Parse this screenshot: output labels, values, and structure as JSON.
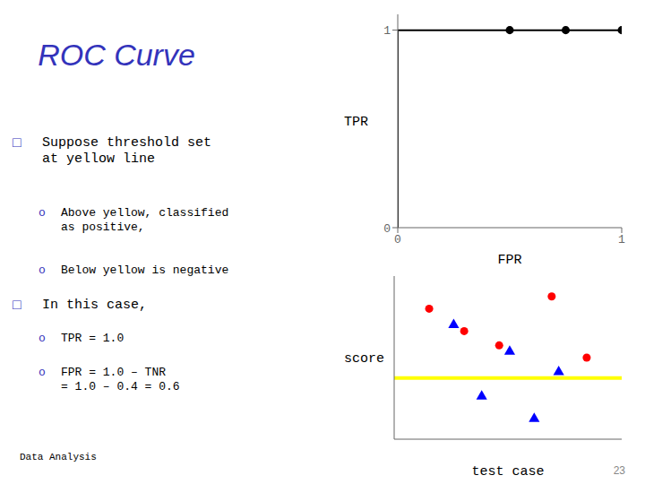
{
  "title": "ROC Curve",
  "color": "#3333bb",
  "annotations": [
    [
      "□",
      "Suppose threshold set\nat yellow line"
    ],
    [
      "o",
      "Above yellow, classified\nas positive,"
    ],
    [
      "o",
      "Below yellow is negative"
    ],
    [
      "□",
      "In this case,"
    ],
    [
      "o",
      "TPR = 1.0"
    ],
    [
      "o",
      "FPR = 1.0 – TNR\n= 1.0 – 0.4 = 0.6"
    ]
  ],
  "footer": "Data Analysis",
  "page_number": 23,
  "chart_data": [
    {
      "type": "line",
      "xlabel": "FPR",
      "ylabel": "TPR",
      "xlim": [
        0,
        1
      ],
      "ylim": [
        0,
        1.08
      ],
      "xticks": [
        0,
        1
      ],
      "yticks": [
        0,
        1
      ],
      "series": [
        {
          "type": "line",
          "color": "#000000",
          "x": [
            0.0,
            0.0,
            0.5,
            0.75,
            1.0
          ],
          "values": [
            0.0,
            1.0,
            1.0,
            1.0,
            1.0
          ]
        },
        {
          "type": "scatter",
          "color": "#000000",
          "marker": "circle",
          "x": [
            0.5,
            0.75,
            1.0
          ],
          "values": [
            1.0,
            1.0,
            1.0
          ]
        }
      ]
    },
    {
      "type": "scatter",
      "xlabel": "test case",
      "ylabel": "score",
      "xlim": [
        1.5,
        8.0
      ],
      "ylim": [
        0.12,
        0.92
      ],
      "tick_labels": false,
      "series": [
        {
          "type": "hline",
          "color": "yellow",
          "values": [
            0.42
          ]
        },
        {
          "type": "scatter",
          "color": "red",
          "marker": "circle",
          "x": [
            2.5,
            3.5,
            4.5,
            6.0,
            7.0
          ],
          "values": [
            0.76,
            0.65,
            0.58,
            0.82,
            0.52
          ]
        },
        {
          "type": "scatter",
          "color": "blue",
          "marker": "triangle",
          "x": [
            3.2,
            4.8,
            6.2,
            4.0,
            5.5
          ],
          "values": [
            0.68,
            0.55,
            0.45,
            0.33,
            0.22
          ]
        }
      ]
    }
  ]
}
